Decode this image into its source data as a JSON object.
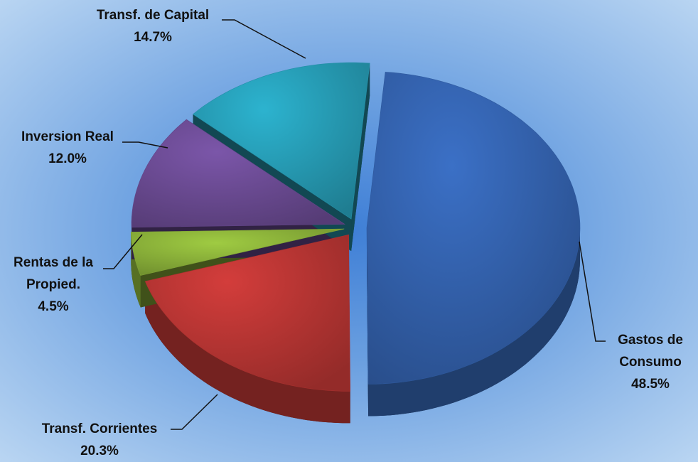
{
  "chart_data": {
    "type": "pie",
    "categories": [
      "Gastos de Consumo",
      "Transf. Corrientes",
      "Rentas de la Propied.",
      "Inversion Real",
      "Transf. de Capital"
    ],
    "values": [
      48.5,
      20.3,
      4.5,
      12.0,
      14.7
    ],
    "value_labels": [
      "48.5%",
      "20.3%",
      "4.5%",
      "12.0%",
      "14.7%"
    ],
    "colors": [
      "#3b70c6",
      "#d33d3b",
      "#9fcb42",
      "#7b56a9",
      "#2cb3cf"
    ]
  }
}
